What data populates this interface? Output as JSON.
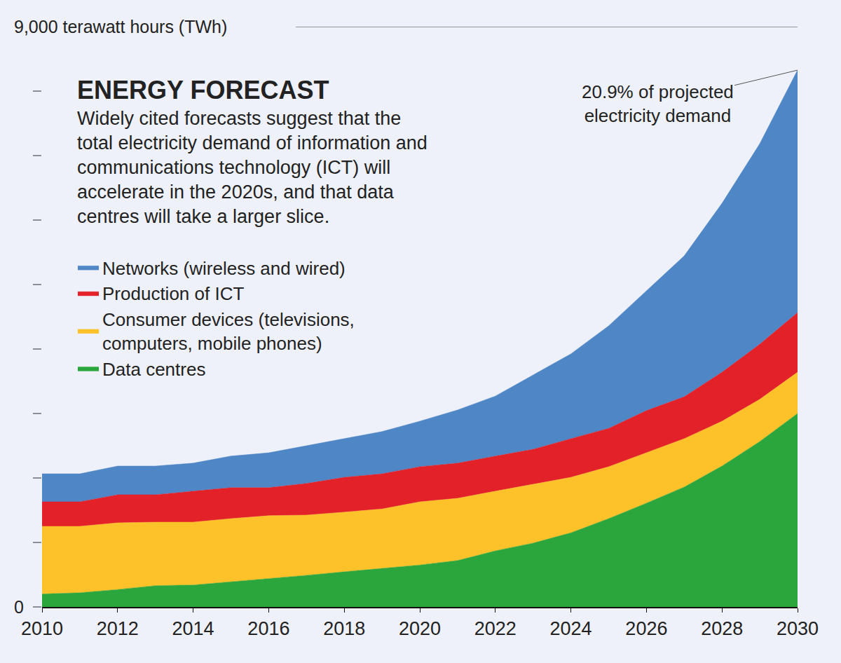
{
  "chart_data": {
    "type": "area",
    "title": "ENERGY FORECAST",
    "subtitle": "Widely cited forecasts suggest that the total electricity demand of information and communications technology (ICT) will accelerate in the 2020s, and that data centres will take a larger slice.",
    "x": [
      2010,
      2011,
      2012,
      2013,
      2014,
      2015,
      2016,
      2017,
      2018,
      2019,
      2020,
      2021,
      2022,
      2023,
      2024,
      2025,
      2026,
      2027,
      2028,
      2029,
      2030
    ],
    "xlim": [
      2010,
      2030
    ],
    "xticks": [
      2010,
      2012,
      2014,
      2016,
      2018,
      2020,
      2022,
      2024,
      2026,
      2028,
      2030
    ],
    "ylim": [
      0,
      9000
    ],
    "yticks": [
      {
        "value": 0,
        "label": "0"
      },
      {
        "value": 1000,
        "label": null
      },
      {
        "value": 2000,
        "label": null
      },
      {
        "value": 3000,
        "label": null
      },
      {
        "value": 4000,
        "label": null
      },
      {
        "value": 5000,
        "label": null
      },
      {
        "value": 6000,
        "label": null
      },
      {
        "value": 7000,
        "label": null
      },
      {
        "value": 8000,
        "label": null
      },
      {
        "value": 9000,
        "label": "9,000 terawatt hours (TWh)"
      }
    ],
    "stacked": true,
    "grid": false,
    "legend": "left",
    "series": [
      {
        "name": "Data centres",
        "color": "#2aa63c",
        "values": [
          200,
          220,
          270,
          330,
          340,
          390,
          435,
          490,
          545,
          600,
          650,
          720,
          870,
          990,
          1150,
          1370,
          1610,
          1860,
          2185,
          2565,
          3000
        ]
      },
      {
        "name": "Consumer devices (televisions, computers, mobile phones)",
        "color": "#fdc12a",
        "values": [
          1050,
          1030,
          1035,
          985,
          975,
          980,
          980,
          935,
          925,
          920,
          980,
          965,
          925,
          910,
          860,
          805,
          780,
          750,
          695,
          655,
          640
        ]
      },
      {
        "name": "Production of ICT",
        "color": "#e32129",
        "values": [
          380,
          380,
          435,
          425,
          480,
          480,
          435,
          490,
          540,
          545,
          545,
          545,
          545,
          545,
          600,
          595,
          655,
          650,
          760,
          855,
          925
        ]
      },
      {
        "name": "Networks (wireless and wired)",
        "color": "#4f86c6",
        "values": [
          435,
          435,
          445,
          445,
          435,
          490,
          540,
          585,
          600,
          655,
          705,
          825,
          930,
          1155,
          1315,
          1590,
          1855,
          2185,
          2620,
          3110,
          3760
        ]
      }
    ],
    "annotations": [
      {
        "text": "20.9% of projected electricity demand",
        "x": 2030
      }
    ]
  }
}
